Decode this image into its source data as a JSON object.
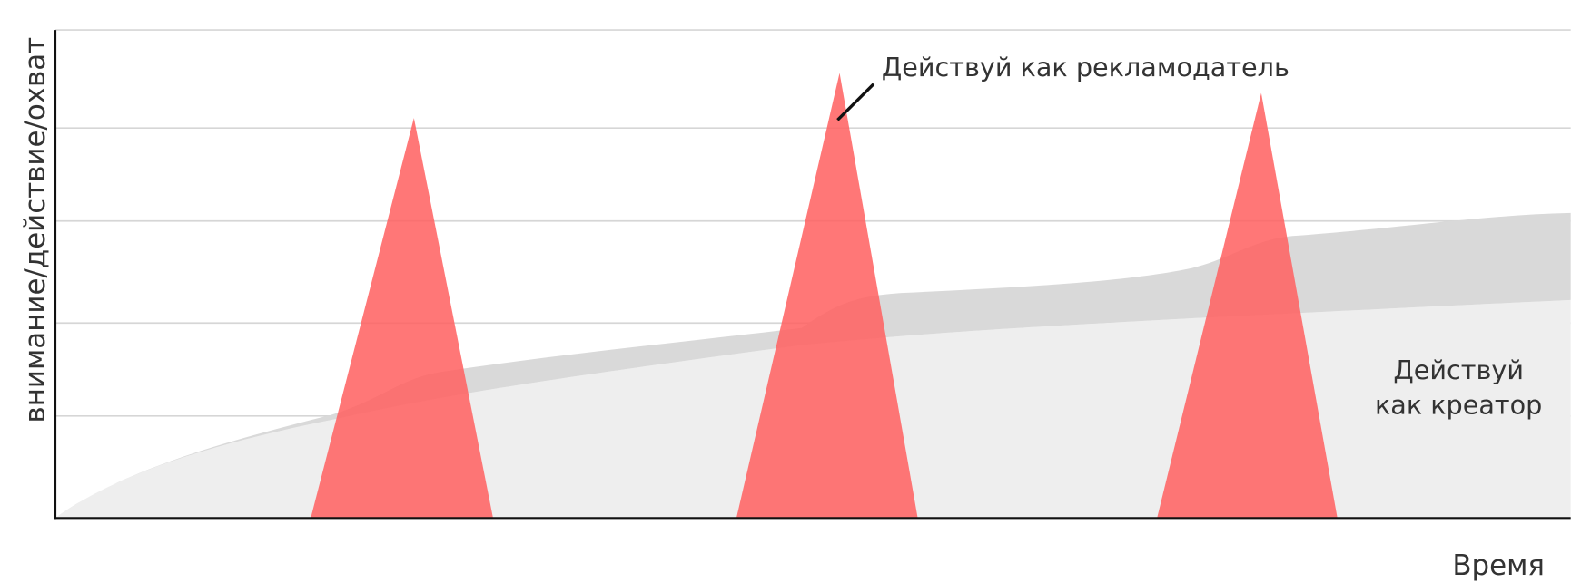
{
  "y_axis_label": "внимание/действие/охват",
  "x_axis_label": "Время",
  "annotations": {
    "advertiser": "Действуй как рекламодатель",
    "creator": [
      "Действуй",
      "как креатор"
    ]
  }
}
